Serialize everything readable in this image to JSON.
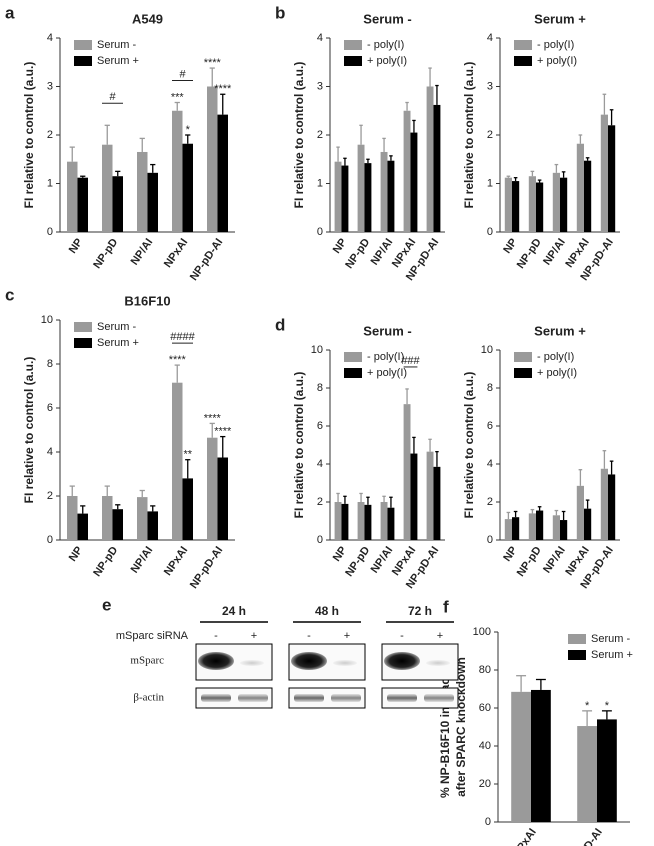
{
  "chart_data": [
    {
      "type": "bar",
      "panel_label": "a",
      "title": "A549",
      "ylabel": "FI relative to control (a.u.)",
      "categories": [
        "NP",
        "NP-pD",
        "NP/AI",
        "NPxAI",
        "NP-pD-AI"
      ],
      "series": [
        {
          "name": "Serum -",
          "color": "#9a9a9a",
          "values": [
            1.45,
            1.8,
            1.65,
            2.5,
            3.0
          ],
          "errors": [
            0.3,
            0.4,
            0.28,
            0.17,
            0.38
          ]
        },
        {
          "name": "Serum +",
          "color": "#000000",
          "values": [
            1.12,
            1.15,
            1.22,
            1.82,
            2.42
          ],
          "errors": [
            0.03,
            0.1,
            0.17,
            0.18,
            0.42
          ]
        }
      ],
      "annotations": [
        "#",
        "#",
        "***",
        "*",
        "****",
        "****"
      ],
      "ylim": [
        0,
        4
      ],
      "yticks": [
        0,
        1,
        2,
        3,
        4
      ],
      "legend": "upper left"
    },
    {
      "type": "bar",
      "panel_label": "b",
      "title": "Serum -",
      "ylabel": "FI relative to control (a.u.)",
      "categories": [
        "NP",
        "NP-pD",
        "NP/AI",
        "NPxAI",
        "NP-pD-AI"
      ],
      "series": [
        {
          "name": "- poly(I)",
          "color": "#9a9a9a",
          "values": [
            1.45,
            1.8,
            1.65,
            2.5,
            3.0
          ],
          "errors": [
            0.3,
            0.4,
            0.28,
            0.17,
            0.38
          ]
        },
        {
          "name": "+ poly(I)",
          "color": "#000000",
          "values": [
            1.37,
            1.42,
            1.47,
            2.05,
            2.62
          ],
          "errors": [
            0.15,
            0.08,
            0.1,
            0.25,
            0.4
          ]
        }
      ],
      "ylim": [
        0,
        4
      ],
      "yticks": [
        0,
        1,
        2,
        3,
        4
      ],
      "legend": "upper left"
    },
    {
      "type": "bar",
      "title": "Serum +",
      "ylabel": "FI relative to control (a.u.)",
      "categories": [
        "NP",
        "NP-pD",
        "NP/AI",
        "NPxAI",
        "NP-pD-AI"
      ],
      "series": [
        {
          "name": "- poly(I)",
          "color": "#9a9a9a",
          "values": [
            1.12,
            1.15,
            1.22,
            1.82,
            2.42
          ],
          "errors": [
            0.03,
            0.1,
            0.17,
            0.18,
            0.42
          ]
        },
        {
          "name": "+ poly(I)",
          "color": "#000000",
          "values": [
            1.05,
            1.02,
            1.12,
            1.47,
            2.2
          ],
          "errors": [
            0.07,
            0.05,
            0.12,
            0.06,
            0.32
          ]
        }
      ],
      "ylim": [
        0,
        4
      ],
      "yticks": [
        0,
        1,
        2,
        3,
        4
      ],
      "legend": "upper left"
    },
    {
      "type": "bar",
      "panel_label": "c",
      "title": "B16F10",
      "ylabel": "FI relative to control (a.u.)",
      "categories": [
        "NP",
        "NP-pD",
        "NP/AI",
        "NPxAI",
        "NP-pD-AI"
      ],
      "series": [
        {
          "name": "Serum -",
          "color": "#9a9a9a",
          "values": [
            2.0,
            2.0,
            1.95,
            7.15,
            4.65
          ],
          "errors": [
            0.45,
            0.45,
            0.3,
            0.8,
            0.65
          ]
        },
        {
          "name": "Serum +",
          "color": "#000000",
          "values": [
            1.2,
            1.4,
            1.3,
            2.8,
            3.75
          ],
          "errors": [
            0.35,
            0.2,
            0.25,
            0.85,
            0.95
          ]
        }
      ],
      "annotations": [
        "####",
        "****",
        "**",
        "****",
        "****"
      ],
      "ylim": [
        0,
        10
      ],
      "yticks": [
        0,
        2,
        4,
        6,
        8,
        10
      ],
      "legend": "upper left"
    },
    {
      "type": "bar",
      "panel_label": "d",
      "title": "Serum -",
      "ylabel": "FI relative to control (a.u.)",
      "categories": [
        "NP",
        "NP-pD",
        "NP/AI",
        "NPxAI",
        "NP-pD-AI"
      ],
      "series": [
        {
          "name": "- poly(I)",
          "color": "#9a9a9a",
          "values": [
            2.0,
            2.0,
            2.0,
            7.15,
            4.65
          ],
          "errors": [
            0.45,
            0.45,
            0.3,
            0.8,
            0.65
          ]
        },
        {
          "name": "+ poly(I)",
          "color": "#000000",
          "values": [
            1.9,
            1.85,
            1.7,
            4.55,
            3.85
          ],
          "errors": [
            0.4,
            0.4,
            0.55,
            0.85,
            0.8
          ]
        }
      ],
      "annotations": [
        "###"
      ],
      "ylim": [
        0,
        10
      ],
      "yticks": [
        0,
        2,
        4,
        6,
        8,
        10
      ],
      "legend": "upper left"
    },
    {
      "type": "bar",
      "title": "Serum +",
      "ylabel": "FI relative to control (a.u.)",
      "categories": [
        "NP",
        "NP-pD",
        "NP/AI",
        "NPxAI",
        "NP-pD-AI"
      ],
      "series": [
        {
          "name": "- poly(I)",
          "color": "#9a9a9a",
          "values": [
            1.1,
            1.4,
            1.3,
            2.85,
            3.75
          ],
          "errors": [
            0.35,
            0.2,
            0.25,
            0.85,
            0.95
          ]
        },
        {
          "name": "+ poly(I)",
          "color": "#000000",
          "values": [
            1.2,
            1.55,
            1.05,
            1.65,
            3.45
          ],
          "errors": [
            0.3,
            0.2,
            0.45,
            0.45,
            0.7
          ]
        }
      ],
      "ylim": [
        0,
        10
      ],
      "yticks": [
        0,
        2,
        4,
        6,
        8,
        10
      ],
      "legend": "upper left"
    },
    {
      "type": "bar",
      "panel_label": "f",
      "ylabel": [
        "% NP-B16F10 interaction",
        "after SPARC knockdown"
      ],
      "categories": [
        "NPxAI",
        "NP-pD-AI"
      ],
      "series": [
        {
          "name": "Serum -",
          "color": "#9a9a9a",
          "values": [
            68.5,
            50.5
          ],
          "errors": [
            8.5,
            8
          ]
        },
        {
          "name": "Serum +",
          "color": "#000000",
          "values": [
            69.5,
            54
          ],
          "errors": [
            5.5,
            4.5
          ]
        }
      ],
      "annotations": [
        "*",
        "*"
      ],
      "ylim": [
        0,
        100
      ],
      "yticks": [
        0,
        20,
        40,
        60,
        80,
        100
      ],
      "legend": "upper right"
    }
  ],
  "blot": {
    "panel_label": "e",
    "times": [
      "24 h",
      "48 h",
      "72 h"
    ],
    "row_label": "mSparc siRNA",
    "lanes": [
      "-",
      "+"
    ],
    "bands": [
      "mSparc",
      "β-actin"
    ]
  }
}
